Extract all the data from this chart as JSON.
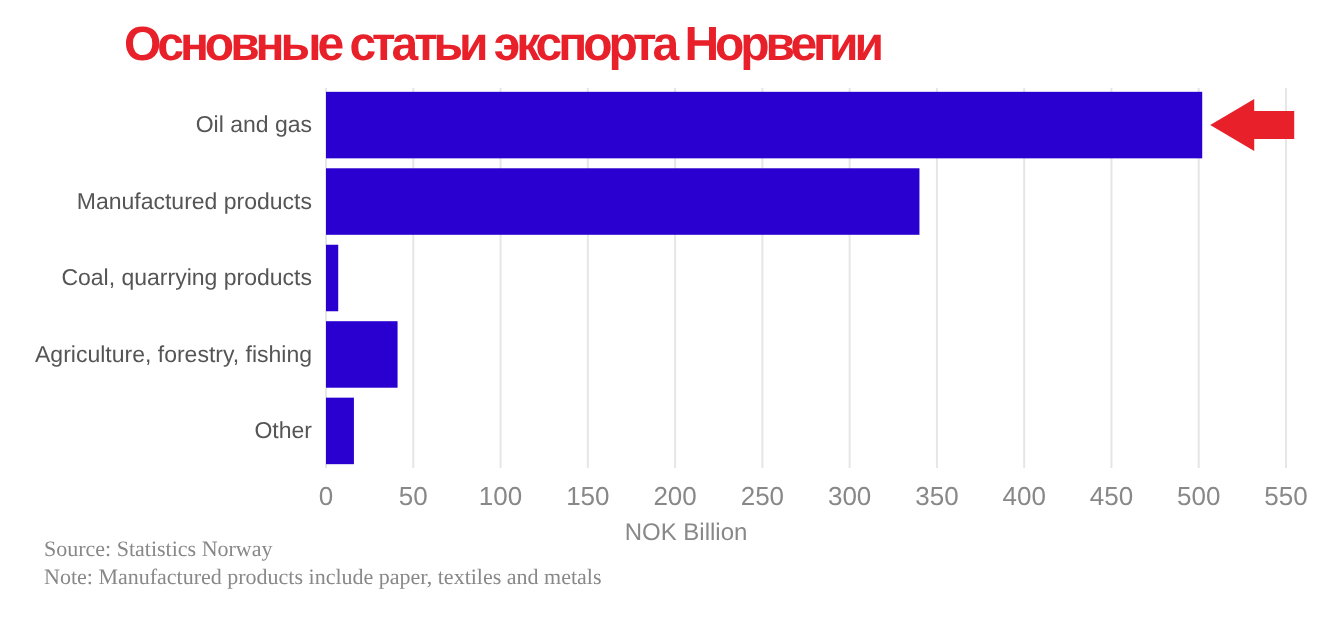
{
  "chart_data": {
    "type": "bar",
    "orientation": "horizontal",
    "title": "Основные статьи экспорта Норвегии",
    "xlabel": "NOK Billion",
    "categories": [
      "Oil and gas",
      "Manufactured products",
      "Coal, quarrying products",
      "Agriculture, forestry, fishing",
      "Other"
    ],
    "values": [
      502,
      340,
      7,
      41,
      16
    ],
    "color": "#2a00d0",
    "xlim": [
      0,
      550
    ],
    "xticks": [
      0,
      50,
      100,
      150,
      200,
      250,
      300,
      350,
      400,
      450,
      500,
      550
    ],
    "grid": "x",
    "annotations": [
      "Source: Statistics Norway",
      "Note: Manufactured products include paper, textiles and metals"
    ]
  }
}
